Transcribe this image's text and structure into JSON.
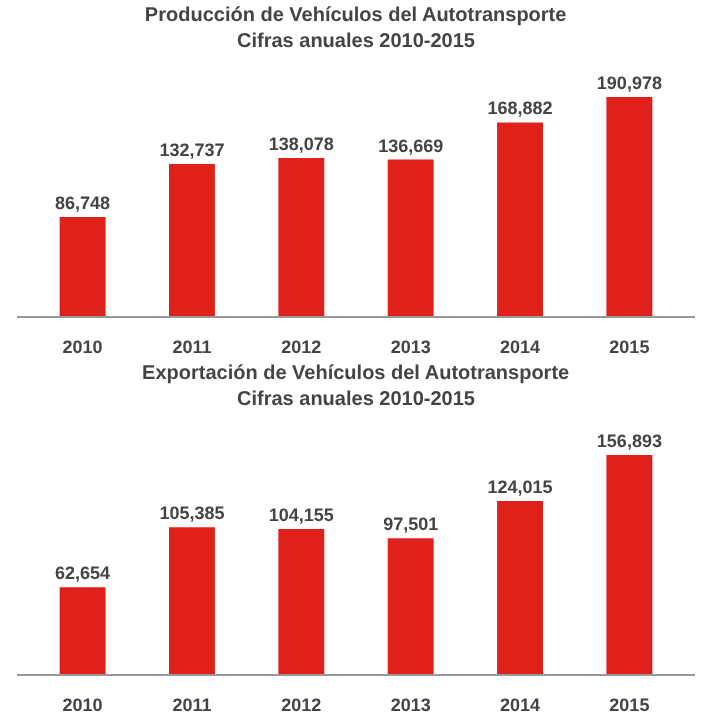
{
  "chart_data": [
    {
      "type": "bar",
      "title": "Producción de Vehículos del Autotransporte",
      "subtitle": "Cifras anuales 2010-2015",
      "categories": [
        "2010",
        "2011",
        "2012",
        "2013",
        "2014",
        "2015"
      ],
      "values": [
        86748,
        132737,
        138078,
        136669,
        168882,
        190978
      ],
      "value_labels": [
        "86,748",
        "132,737",
        "138,078",
        "136,669",
        "168,882",
        "190,978"
      ],
      "color": "#e0201b"
    },
    {
      "type": "bar",
      "title": "Exportación de Vehículos del Autotransporte",
      "subtitle": "Cifras anuales 2010-2015",
      "categories": [
        "2010",
        "2011",
        "2012",
        "2013",
        "2014",
        "2015"
      ],
      "values": [
        62654,
        105385,
        104155,
        97501,
        124015,
        156893
      ],
      "value_labels": [
        "62,654",
        "105,385",
        "104,155",
        "97,501",
        "124,015",
        "156,893"
      ],
      "color": "#e0201b"
    }
  ]
}
